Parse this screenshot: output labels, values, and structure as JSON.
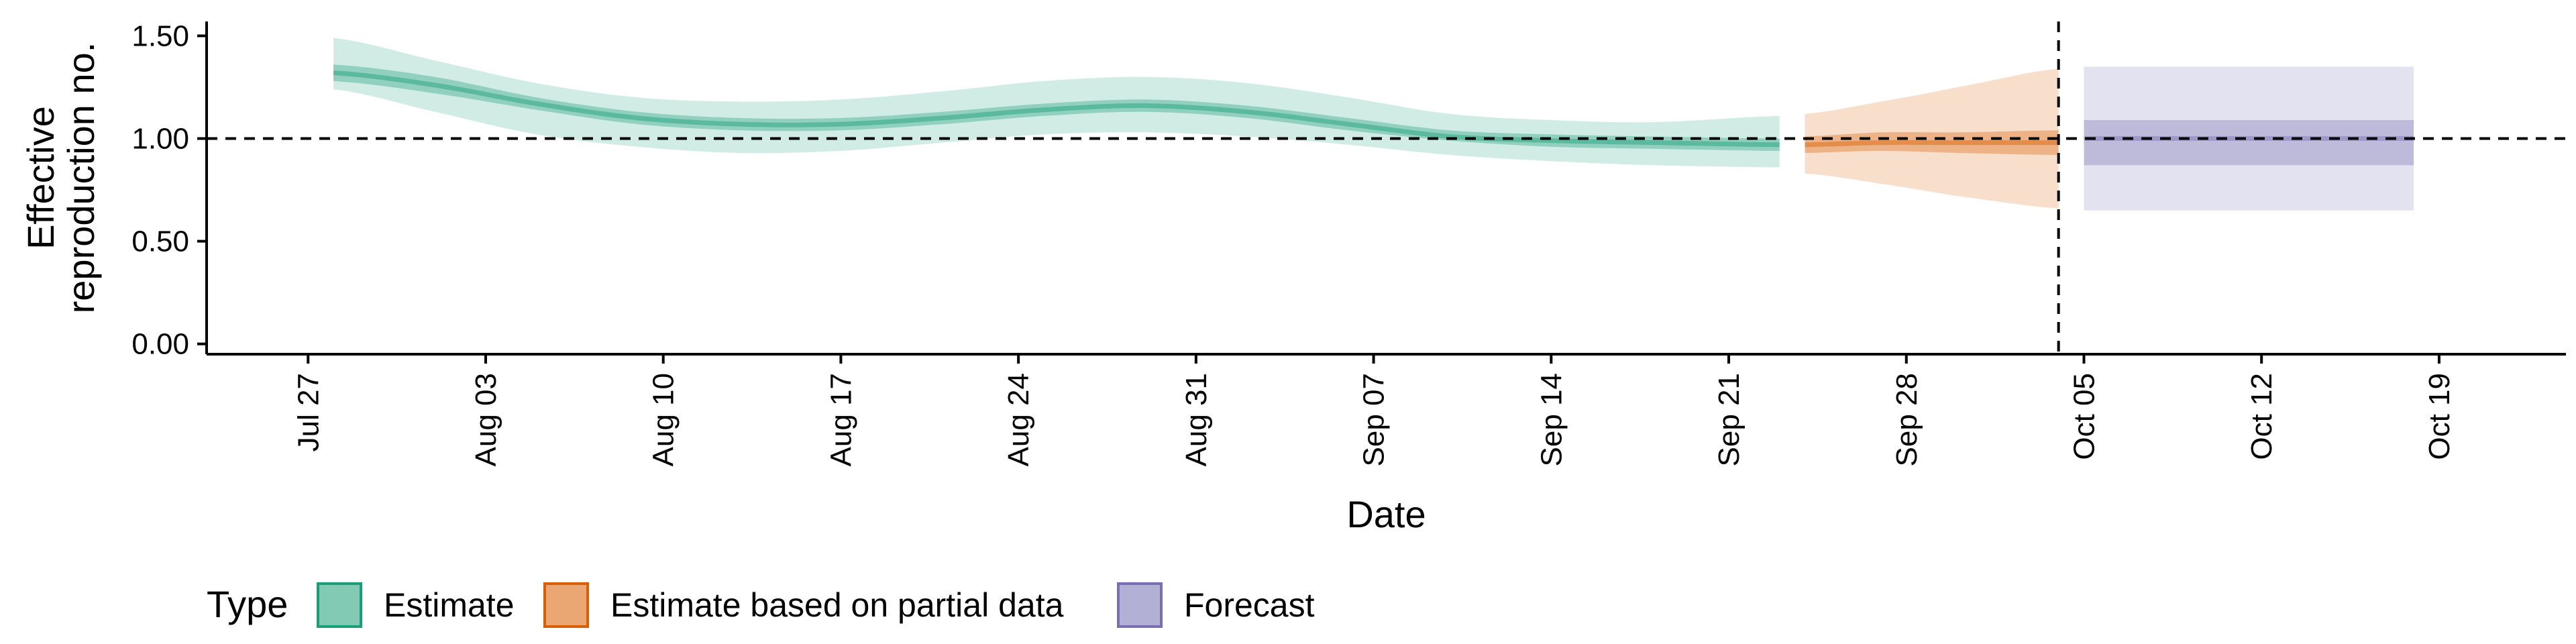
{
  "chart_data": {
    "type": "area",
    "xlabel": "Date",
    "ylabel": [
      "Effective",
      "reproduction no."
    ],
    "ylim": [
      -0.05,
      1.57
    ],
    "xlim": [
      "2020-07-23",
      "2020-10-24"
    ],
    "x_ticks": [
      "2020-07-27",
      "2020-08-03",
      "2020-08-10",
      "2020-08-17",
      "2020-08-24",
      "2020-08-31",
      "2020-09-07",
      "2020-09-14",
      "2020-09-21",
      "2020-09-28",
      "2020-10-05",
      "2020-10-12",
      "2020-10-19"
    ],
    "x_tick_labels": [
      "Jul 27",
      "Aug 03",
      "Aug 10",
      "Aug 17",
      "Aug 24",
      "Aug 31",
      "Sep 07",
      "Sep 14",
      "Sep 21",
      "Sep 28",
      "Oct 05",
      "Oct 12",
      "Oct 19"
    ],
    "y_ticks": [
      0,
      0.5,
      1.0,
      1.5
    ],
    "y_tick_labels": [
      "0.00",
      "0.50",
      "1.00",
      "1.50"
    ],
    "reference_line_y": 1.0,
    "reference_line_date": "2020-10-04",
    "legend_title": "Type",
    "legend_position": "bottom",
    "series": [
      {
        "name": "Estimate",
        "color": "#1b9e77",
        "x": [
          "2020-07-28",
          "2020-08-01",
          "2020-08-05",
          "2020-08-09",
          "2020-08-13",
          "2020-08-17",
          "2020-08-21",
          "2020-08-25",
          "2020-08-29",
          "2020-09-02",
          "2020-09-06",
          "2020-09-10",
          "2020-09-14",
          "2020-09-18",
          "2020-09-23"
        ],
        "median": [
          1.32,
          1.26,
          1.17,
          1.1,
          1.07,
          1.07,
          1.1,
          1.14,
          1.16,
          1.13,
          1.07,
          1.01,
          0.99,
          0.98,
          0.97
        ],
        "inner_lower": [
          1.28,
          1.22,
          1.14,
          1.07,
          1.04,
          1.04,
          1.07,
          1.11,
          1.13,
          1.1,
          1.04,
          0.99,
          0.96,
          0.95,
          0.94
        ],
        "inner_upper": [
          1.36,
          1.3,
          1.2,
          1.13,
          1.1,
          1.1,
          1.13,
          1.17,
          1.19,
          1.16,
          1.1,
          1.04,
          1.02,
          1.01,
          1.0
        ],
        "outer_lower": [
          1.24,
          1.13,
          1.02,
          0.96,
          0.93,
          0.94,
          0.98,
          1.02,
          1.03,
          1.01,
          0.97,
          0.92,
          0.89,
          0.87,
          0.86
        ],
        "outer_upper": [
          1.49,
          1.38,
          1.27,
          1.2,
          1.18,
          1.19,
          1.23,
          1.28,
          1.3,
          1.27,
          1.2,
          1.12,
          1.09,
          1.08,
          1.11
        ]
      },
      {
        "name": "Estimate based on partial data",
        "color": "#d95f02",
        "x": [
          "2020-09-24",
          "2020-09-27",
          "2020-09-30",
          "2020-10-04"
        ],
        "median": [
          0.97,
          0.98,
          0.98,
          0.98
        ],
        "inner_lower": [
          0.93,
          0.94,
          0.93,
          0.92
        ],
        "inner_upper": [
          1.01,
          1.03,
          1.03,
          1.04
        ],
        "outer_lower": [
          0.83,
          0.78,
          0.72,
          0.66
        ],
        "outer_upper": [
          1.12,
          1.18,
          1.25,
          1.34
        ]
      },
      {
        "name": "Forecast",
        "color": "#7570b3",
        "x": [
          "2020-10-05",
          "2020-10-18"
        ],
        "median": [
          1.0,
          1.0
        ],
        "inner_lower": [
          0.87,
          0.87
        ],
        "inner_upper": [
          1.09,
          1.09
        ],
        "outer_lower": [
          0.65,
          0.65
        ],
        "outer_upper": [
          1.35,
          1.35
        ]
      }
    ]
  }
}
